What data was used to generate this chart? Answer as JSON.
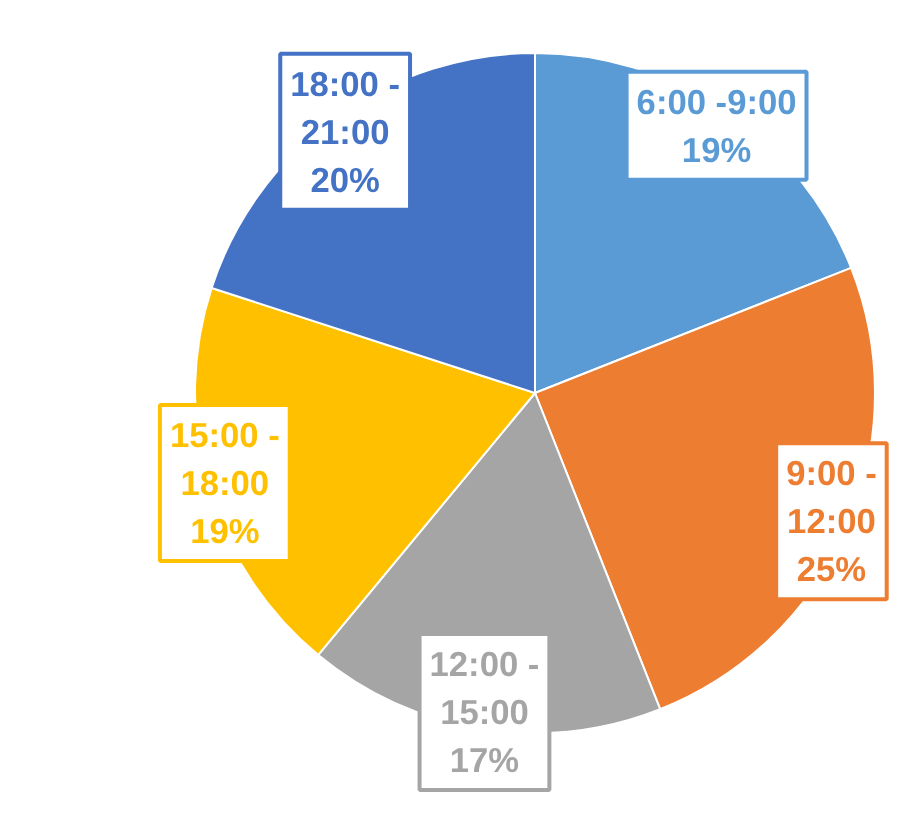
{
  "chart_data": {
    "type": "pie",
    "categories": [
      "6:00 -9:00",
      "9:00 -\n12:00",
      "12:00 -\n15:00",
      "15:00 -\n18:00",
      "18:00 -\n21:00"
    ],
    "values": [
      19,
      25,
      17,
      19,
      20
    ],
    "colors": [
      "#5b9bd5",
      "#ed7d31",
      "#a5a5a5",
      "#ffc000",
      "#4472c4"
    ],
    "value_labels": [
      "19%",
      "25%",
      "17%",
      "19%",
      "20%"
    ]
  }
}
